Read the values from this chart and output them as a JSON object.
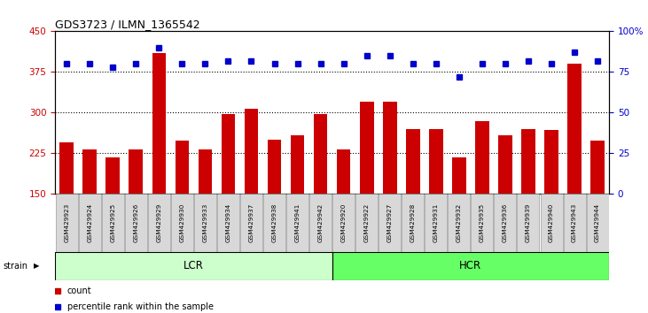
{
  "title": "GDS3723 / ILMN_1365542",
  "samples": [
    "GSM429923",
    "GSM429924",
    "GSM429925",
    "GSM429926",
    "GSM429929",
    "GSM429930",
    "GSM429933",
    "GSM429934",
    "GSM429937",
    "GSM429938",
    "GSM429941",
    "GSM429942",
    "GSM429920",
    "GSM429922",
    "GSM429927",
    "GSM429928",
    "GSM429931",
    "GSM429932",
    "GSM429935",
    "GSM429936",
    "GSM429939",
    "GSM429940",
    "GSM429943",
    "GSM429944"
  ],
  "counts": [
    245,
    232,
    218,
    232,
    410,
    248,
    232,
    298,
    308,
    250,
    258,
    297,
    232,
    320,
    320,
    270,
    270,
    218,
    285,
    258,
    270,
    268,
    390,
    248
  ],
  "percentile_ranks": [
    80,
    80,
    78,
    80,
    90,
    80,
    80,
    82,
    82,
    80,
    80,
    80,
    80,
    85,
    85,
    80,
    80,
    72,
    80,
    80,
    82,
    80,
    87,
    82
  ],
  "lcr_count": 12,
  "hcr_count": 12,
  "ylim_left": [
    150,
    450
  ],
  "ylim_right": [
    0,
    100
  ],
  "yticks_left": [
    150,
    225,
    300,
    375,
    450
  ],
  "yticks_right": [
    0,
    25,
    50,
    75,
    100
  ],
  "bar_color": "#cc0000",
  "dot_color": "#0000cc",
  "lcr_color": "#ccffcc",
  "hcr_color": "#66ff66",
  "bar_width": 0.6
}
